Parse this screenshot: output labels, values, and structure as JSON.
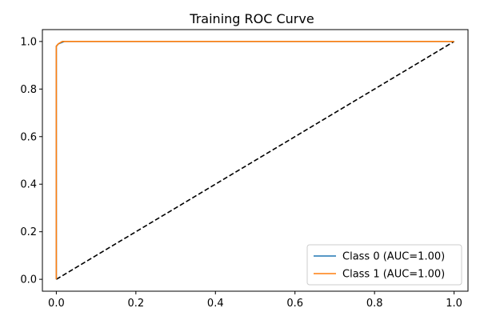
{
  "chart_data": {
    "type": "line",
    "title": "Training ROC Curve",
    "xlabel": "",
    "ylabel": "",
    "xlim": [
      -0.035,
      1.035
    ],
    "ylim": [
      -0.05,
      1.05
    ],
    "x_ticks": [
      0.0,
      0.2,
      0.4,
      0.6,
      0.8,
      1.0
    ],
    "x_tick_labels": [
      "0.0",
      "0.2",
      "0.4",
      "0.6",
      "0.8",
      "1.0"
    ],
    "y_ticks": [
      0.0,
      0.2,
      0.4,
      0.6,
      0.8,
      1.0
    ],
    "y_tick_labels": [
      "0.0",
      "0.2",
      "0.4",
      "0.6",
      "0.8",
      "1.0"
    ],
    "grid": false,
    "legend_position": "lower-right",
    "series": [
      {
        "name": "Class 0 (AUC=1.00)",
        "color": "#1f77b4",
        "x": [
          0.0,
          0.0,
          0.005,
          0.02,
          1.0
        ],
        "y": [
          0.0,
          0.98,
          0.99,
          1.0,
          1.0
        ]
      },
      {
        "name": "Class 1 (AUC=1.00)",
        "color": "#ff7f0e",
        "x": [
          0.0,
          0.0,
          0.005,
          0.015,
          1.0
        ],
        "y": [
          0.0,
          0.98,
          0.99,
          1.0,
          1.0
        ]
      }
    ],
    "reference_line": {
      "color": "#000000",
      "style": "dashed",
      "x": [
        0.0,
        1.0
      ],
      "y": [
        0.0,
        1.0
      ]
    }
  }
}
